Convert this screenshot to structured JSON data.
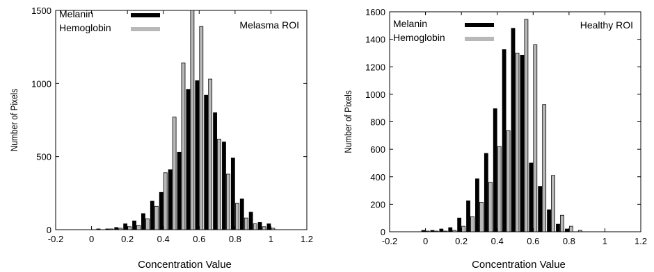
{
  "chart_data": [
    {
      "type": "bar",
      "title": "Melasma ROI",
      "xlabel": "Concentration Value",
      "ylabel": "Number of Pixels",
      "xlim": [
        -0.2,
        1.2
      ],
      "ylim": [
        0,
        1500
      ],
      "xticks": [
        "-0.2",
        "0",
        "0.2",
        "0.4",
        "0.6",
        "0.8",
        "1",
        "1.2"
      ],
      "yticks": [
        "0",
        "500",
        "1000",
        "1500"
      ],
      "legend_position": "top-left",
      "x": [
        0.05,
        0.1,
        0.15,
        0.2,
        0.25,
        0.3,
        0.35,
        0.4,
        0.45,
        0.5,
        0.55,
        0.6,
        0.65,
        0.7,
        0.75,
        0.8,
        0.85,
        0.9,
        0.95,
        1.0
      ],
      "series": [
        {
          "name": "Melanin",
          "color": "#000000",
          "values": [
            5,
            5,
            15,
            40,
            60,
            110,
            195,
            255,
            410,
            530,
            960,
            1020,
            920,
            800,
            600,
            490,
            210,
            120,
            50,
            40
          ]
        },
        {
          "name": "Hemoglobin",
          "color": "#b8b8b8",
          "values": [
            0,
            5,
            10,
            20,
            30,
            75,
            160,
            390,
            770,
            1140,
            1500,
            1390,
            1030,
            620,
            380,
            180,
            80,
            40,
            20,
            10
          ]
        }
      ]
    },
    {
      "type": "bar",
      "title": "Healthy ROI",
      "xlabel": "Concentration Value",
      "ylabel": "Number of Pixels",
      "xlim": [
        -0.2,
        1.2
      ],
      "ylim": [
        0,
        1600
      ],
      "xticks": [
        "-0.2",
        "0",
        "0.2",
        "0.4",
        "0.6",
        "0.8",
        "1",
        "1.2"
      ],
      "yticks": [
        "0",
        "200",
        "400",
        "600",
        "800",
        "1000",
        "1200",
        "1400",
        "1600"
      ],
      "legend_position": "top-left",
      "x": [
        0.0,
        0.05,
        0.1,
        0.15,
        0.2,
        0.25,
        0.3,
        0.35,
        0.4,
        0.45,
        0.5,
        0.55,
        0.6,
        0.65,
        0.7,
        0.75,
        0.8,
        0.85,
        0.9
      ],
      "series": [
        {
          "name": "Melanin",
          "color": "#000000",
          "values": [
            10,
            10,
            20,
            30,
            100,
            225,
            385,
            570,
            895,
            1325,
            1480,
            1285,
            500,
            330,
            160,
            55,
            20,
            0,
            0
          ]
        },
        {
          "name": "Hemoglobin",
          "color": "#b8b8b8",
          "values": [
            5,
            5,
            5,
            10,
            40,
            110,
            215,
            360,
            620,
            735,
            1300,
            1545,
            1360,
            925,
            410,
            120,
            40,
            10,
            0
          ]
        }
      ]
    }
  ]
}
